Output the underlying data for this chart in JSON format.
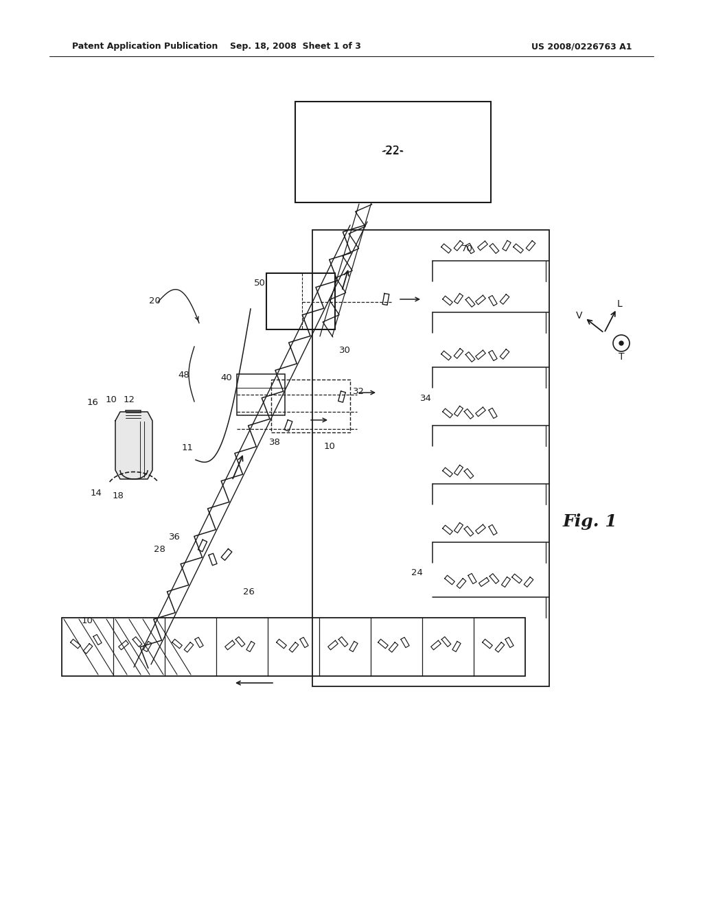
{
  "header_left": "Patent Application Publication",
  "header_center": "Sep. 18, 2008  Sheet 1 of 3",
  "header_right": "US 2008/0226763 A1",
  "fig_label": "Fig. 1",
  "background_color": "#ffffff",
  "line_color": "#1a1a1a",
  "gray_color": "#888888",
  "light_gray": "#cccccc"
}
